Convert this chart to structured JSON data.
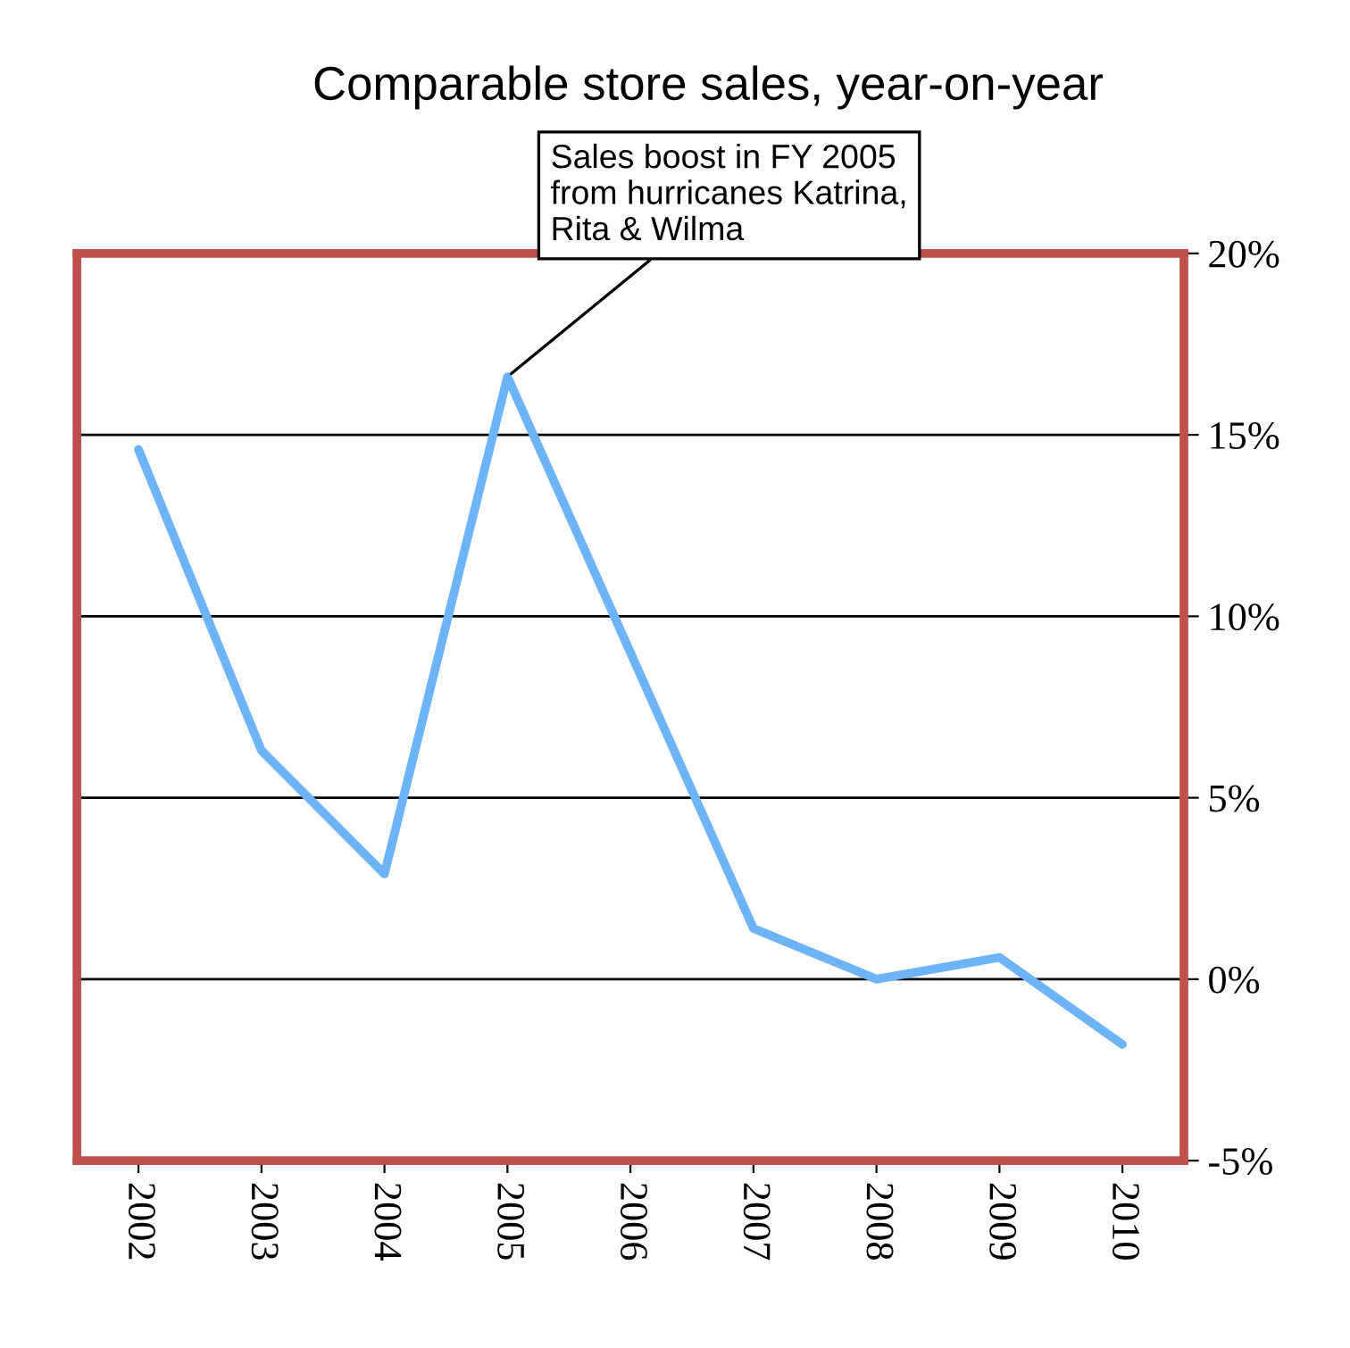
{
  "chart_data": {
    "type": "line",
    "title": "Comparable store sales, year-on-year",
    "categories": [
      "2002",
      "2003",
      "2004",
      "2005",
      "2006",
      "2007",
      "2008",
      "2009",
      "2010"
    ],
    "series": [
      {
        "color": "#6cb4f7",
        "values": [
          14.6,
          6.3,
          2.9,
          16.6,
          9.0,
          1.4,
          0.0,
          0.6,
          -1.8
        ]
      }
    ],
    "ylim": [
      -5,
      20
    ],
    "yticks": [
      {
        "value": -5,
        "label": "-5%"
      },
      {
        "value": 0,
        "label": "0%"
      },
      {
        "value": 5,
        "label": "5%"
      },
      {
        "value": 10,
        "label": "10%"
      },
      {
        "value": 15,
        "label": "15%"
      },
      {
        "value": 20,
        "label": "20%"
      }
    ],
    "grid": "y",
    "marker": "none",
    "line_style": "solid",
    "annotations": [
      {
        "text": "Sales boost in FY 2005\nfrom hurricanes Katrina,\nRita & Wilma",
        "x": "2005",
        "y": 16.6
      }
    ]
  }
}
